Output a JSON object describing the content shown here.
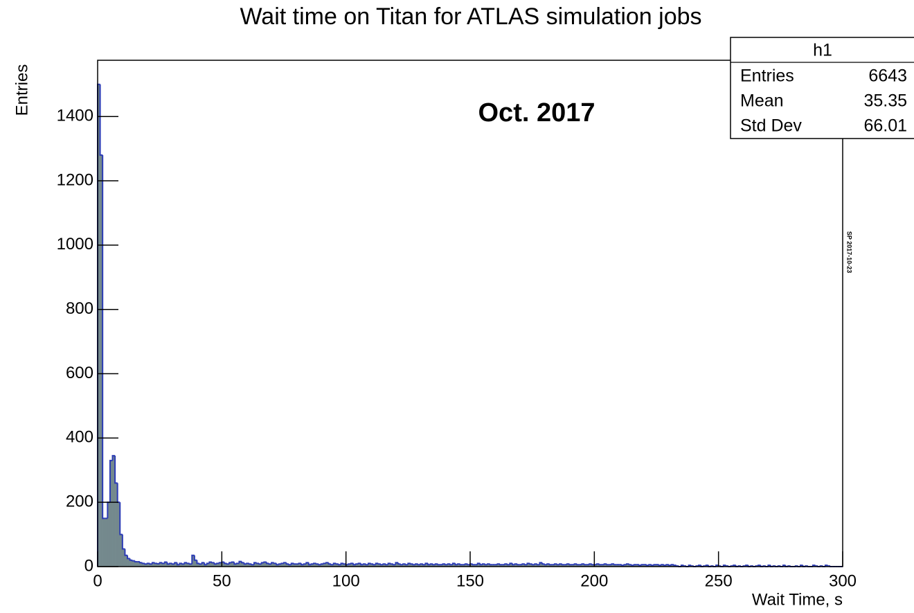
{
  "chart_data": {
    "type": "histogram",
    "title": "Wait time on Titan for ATLAS simulation jobs",
    "annotation": "Oct. 2017",
    "side_note": "SP 2017-10-23",
    "x_label": "Wait Time, s",
    "y_label": "Entries",
    "color": "#74898d",
    "edge_color": "#2b3bb5",
    "xlim": [
      0,
      300
    ],
    "xticks": [
      0,
      50,
      100,
      150,
      200,
      250,
      300
    ],
    "ylim": [
      0,
      1575
    ],
    "yticks": [
      0,
      200,
      400,
      600,
      800,
      1000,
      1200,
      1400
    ],
    "stats": {
      "title": "h1",
      "rows": [
        [
          "Entries",
          6643
        ],
        [
          "Mean",
          35.35
        ],
        [
          "Std Dev",
          66.01
        ]
      ]
    },
    "bins": [
      0,
      1,
      2,
      3,
      4,
      5,
      6,
      7,
      8,
      9,
      10,
      11,
      12,
      13,
      14,
      15,
      16,
      17,
      18,
      19,
      20,
      21,
      22,
      23,
      24,
      25,
      26,
      27,
      28,
      29,
      30,
      31,
      32,
      33,
      34,
      35,
      36,
      37,
      38,
      39,
      40,
      41,
      42,
      43,
      44,
      45,
      46,
      47,
      48,
      49,
      50,
      51,
      52,
      53,
      54,
      55,
      56,
      57,
      58,
      59,
      60,
      61,
      62,
      63,
      64,
      65,
      66,
      67,
      68,
      69,
      70,
      71,
      72,
      73,
      74,
      75,
      76,
      77,
      78,
      79,
      80,
      81,
      82,
      83,
      84,
      85,
      86,
      87,
      88,
      89,
      90,
      91,
      92,
      93,
      94,
      95,
      96,
      97,
      98,
      99,
      100,
      101,
      102,
      103,
      104,
      105,
      106,
      107,
      108,
      109,
      110,
      111,
      112,
      113,
      114,
      115,
      116,
      117,
      118,
      119,
      120,
      121,
      122,
      123,
      124,
      125,
      126,
      127,
      128,
      129,
      130,
      131,
      132,
      133,
      134,
      135,
      136,
      137,
      138,
      139,
      140,
      141,
      142,
      143,
      144,
      145,
      146,
      147,
      148,
      149,
      150,
      151,
      152,
      153,
      154,
      155,
      156,
      157,
      158,
      159,
      160,
      161,
      162,
      163,
      164,
      165,
      166,
      167,
      168,
      169,
      170,
      171,
      172,
      173,
      174,
      175,
      176,
      177,
      178,
      179,
      180,
      181,
      182,
      183,
      184,
      185,
      186,
      187,
      188,
      189,
      190,
      191,
      192,
      193,
      194,
      195,
      196,
      197,
      198,
      199,
      200,
      201,
      202,
      203,
      204,
      205,
      206,
      207,
      208,
      209,
      210,
      211,
      212,
      213,
      214,
      215,
      216,
      217,
      218,
      219,
      220,
      221,
      222,
      223,
      224,
      225,
      226,
      227,
      228,
      229,
      230,
      231,
      232,
      233,
      234,
      235,
      236,
      237,
      238,
      239,
      240,
      241,
      242,
      243,
      244,
      245,
      246,
      247,
      248,
      249,
      250,
      251,
      252,
      253,
      254,
      255,
      256,
      257,
      258,
      259,
      260,
      261,
      262,
      263,
      264,
      265,
      266,
      267,
      268,
      269,
      270,
      271,
      272,
      273,
      274,
      275,
      276,
      277,
      278,
      279,
      280,
      281,
      282,
      283,
      284,
      285,
      286,
      287,
      288,
      289,
      290,
      291,
      292,
      293,
      294,
      295,
      296,
      297,
      298,
      299,
      300
    ],
    "values": [
      1500,
      1280,
      150,
      150,
      200,
      330,
      345,
      260,
      200,
      100,
      55,
      35,
      25,
      20,
      18,
      15,
      15,
      12,
      10,
      8,
      10,
      8,
      12,
      10,
      9,
      12,
      10,
      14,
      8,
      10,
      8,
      12,
      6,
      10,
      8,
      12,
      10,
      8,
      35,
      20,
      10,
      8,
      12,
      6,
      10,
      14,
      12,
      8,
      10,
      12,
      14,
      10,
      8,
      12,
      14,
      8,
      10,
      16,
      12,
      8,
      10,
      8,
      6,
      12,
      10,
      8,
      12,
      14,
      10,
      8,
      12,
      10,
      6,
      8,
      10,
      12,
      8,
      6,
      10,
      8,
      8,
      10,
      6,
      8,
      12,
      6,
      8,
      10,
      8,
      6,
      8,
      10,
      12,
      8,
      6,
      10,
      8,
      6,
      10,
      8,
      6,
      8,
      10,
      6,
      8,
      10,
      6,
      8,
      6,
      10,
      8,
      6,
      10,
      8,
      6,
      8,
      6,
      10,
      8,
      6,
      12,
      8,
      6,
      8,
      6,
      10,
      8,
      6,
      8,
      6,
      8,
      6,
      10,
      6,
      8,
      6,
      8,
      6,
      6,
      8,
      6,
      8,
      6,
      10,
      6,
      8,
      6,
      6,
      8,
      6,
      8,
      6,
      6,
      10,
      6,
      8,
      6,
      8,
      6,
      6,
      6,
      8,
      6,
      6,
      8,
      6,
      10,
      6,
      8,
      6,
      6,
      8,
      6,
      10,
      8,
      6,
      8,
      6,
      12,
      8,
      6,
      8,
      6,
      6,
      8,
      6,
      8,
      6,
      6,
      8,
      6,
      6,
      8,
      6,
      6,
      8,
      6,
      6,
      8,
      6,
      6,
      8,
      6,
      6,
      8,
      6,
      6,
      8,
      6,
      6,
      6,
      4,
      6,
      8,
      6,
      4,
      6,
      6,
      4,
      6,
      6,
      4,
      6,
      4,
      6,
      6,
      4,
      6,
      4,
      6,
      4,
      6,
      4,
      2,
      0,
      4,
      2,
      0,
      4,
      2,
      0,
      2,
      4,
      0,
      2,
      4,
      0,
      2,
      0,
      4,
      2,
      0,
      4,
      2,
      0,
      2,
      4,
      0,
      2,
      0,
      2,
      4,
      0,
      2,
      0,
      2,
      4,
      0,
      2,
      0,
      4,
      0,
      2,
      0,
      2,
      0,
      4,
      0,
      2,
      0,
      0,
      2,
      0,
      4,
      0,
      2,
      0,
      0,
      4,
      2,
      0,
      2,
      0,
      4,
      2,
      0,
      0,
      0,
      0,
      0
    ]
  }
}
